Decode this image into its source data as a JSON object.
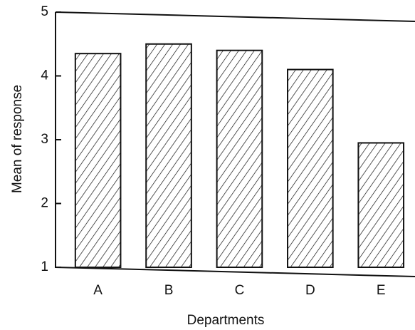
{
  "chart_data": {
    "type": "bar",
    "x_label": "Departments",
    "y_label": "Mean of response",
    "categories": [
      "A",
      "B",
      "C",
      "D",
      "E"
    ],
    "values": [
      4.35,
      4.5,
      4.4,
      4.1,
      2.95
    ],
    "color": "#111111",
    "ylim": [
      1,
      5
    ],
    "yticks": [
      1,
      2,
      3,
      4,
      5
    ],
    "grid": false
  }
}
